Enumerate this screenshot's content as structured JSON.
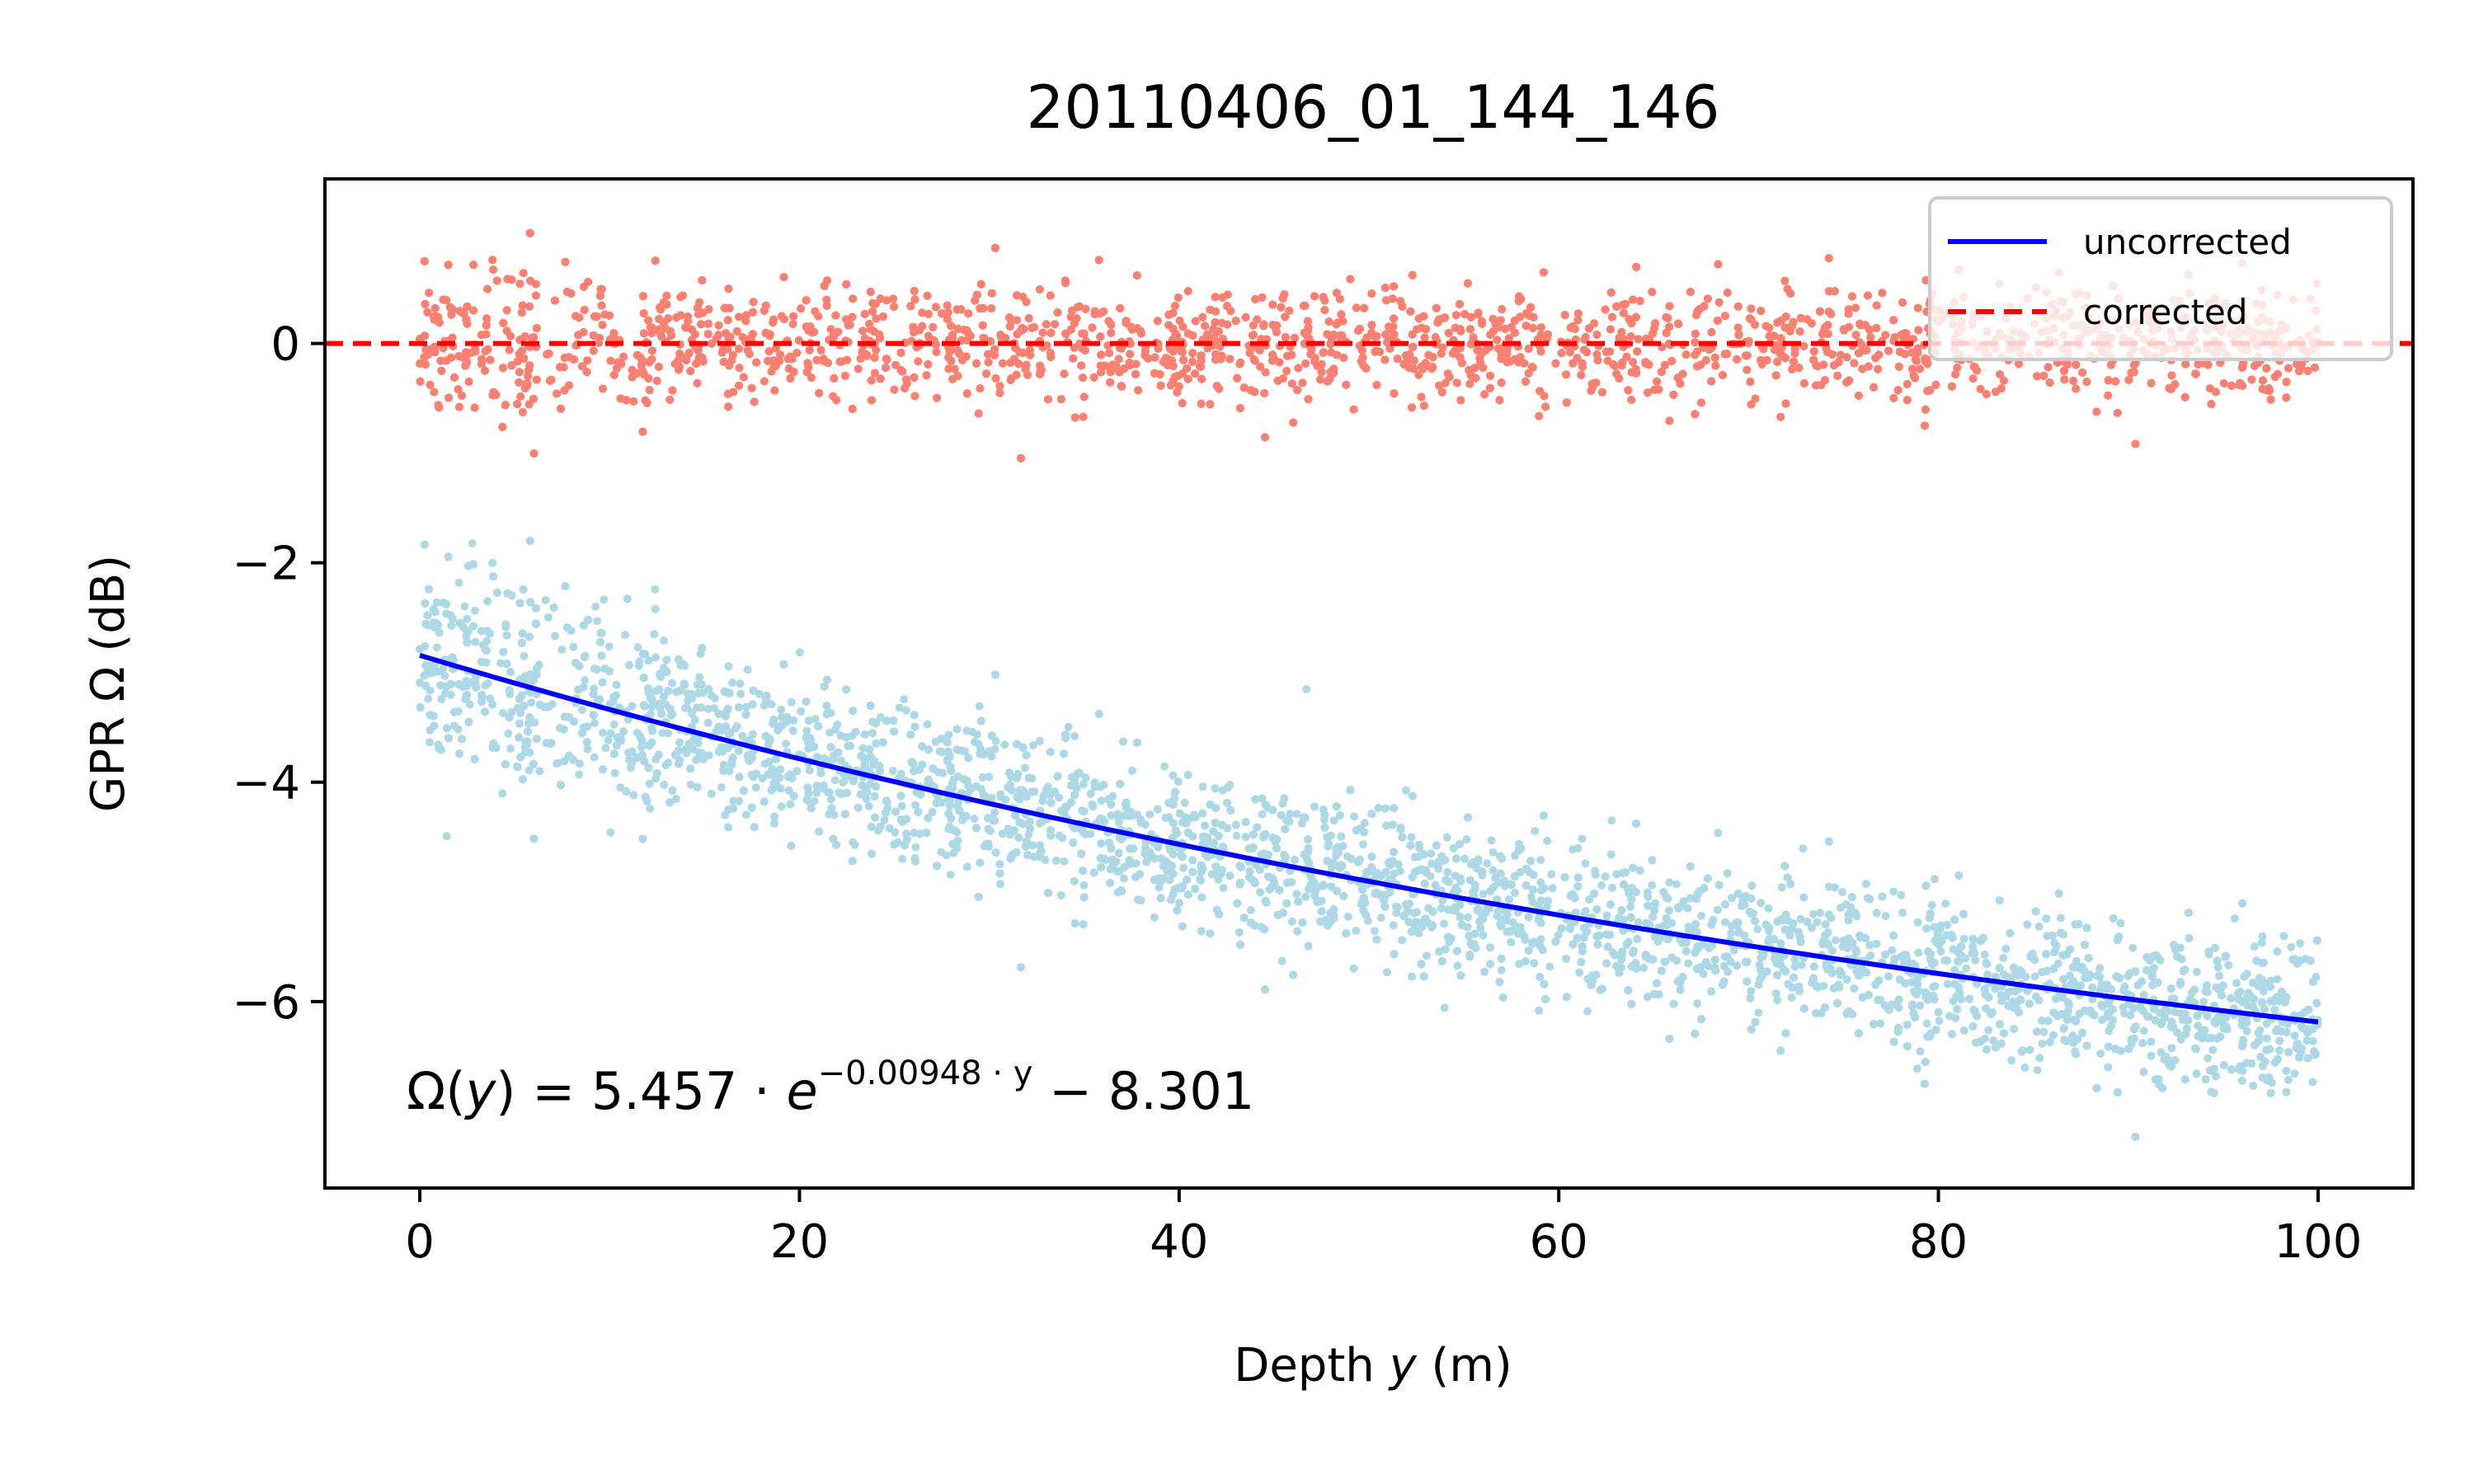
{
  "chart_data": {
    "type": "scatter",
    "title": "20110406_01_144_146",
    "xlabel_pre": "Depth ",
    "xlabel_var": "y",
    "xlabel_post": " (m)",
    "ylabel": "GPR Ω (dB)",
    "xlim": [
      -5,
      105
    ],
    "ylim": [
      -7.7,
      1.5
    ],
    "xticks": [
      0,
      20,
      40,
      60,
      80,
      100
    ],
    "xtick_labels": [
      "0",
      "20",
      "40",
      "60",
      "80",
      "100"
    ],
    "yticks": [
      0,
      -2,
      -4,
      -6
    ],
    "ytick_labels": [
      "0",
      "−2",
      "−4",
      "−6"
    ],
    "grid": false,
    "legend_position": "top-right",
    "legend": [
      {
        "label": "uncorrected",
        "style": "solid",
        "color": "#0000ff"
      },
      {
        "label": "corrected",
        "style": "dashed",
        "color": "#ff0000"
      }
    ],
    "fit": {
      "a": 5.457,
      "b": 0.00948,
      "c": -8.301,
      "x_range": [
        0,
        100
      ],
      "color": "#0000ff"
    },
    "reference_line": {
      "y": 0,
      "color": "#ff0000",
      "style": "dashed"
    },
    "scatter_series": [
      {
        "id": "uncorrected-points",
        "color": "#add8e6",
        "x_range": [
          0,
          100
        ],
        "center_curve": "fit",
        "spread_db": 0.75,
        "outlier_max_db": -1.8,
        "outlier_min_db": -7.4
      },
      {
        "id": "corrected-points",
        "color": "#fa8072",
        "x_range": [
          0,
          100
        ],
        "center_db": 0,
        "spread_db": 0.55,
        "outlier_max_db": 1.05,
        "outlier_min_db": -1.4
      }
    ],
    "annotation": {
      "lhs": "Ω(",
      "lhs_var": "y",
      "lhs_close": ")",
      "rhs_coef": " = 5.457 · ",
      "rhs_e": "e",
      "rhs_exp": "−0.00948 · y",
      "rhs_tail": " − 8.301"
    }
  }
}
